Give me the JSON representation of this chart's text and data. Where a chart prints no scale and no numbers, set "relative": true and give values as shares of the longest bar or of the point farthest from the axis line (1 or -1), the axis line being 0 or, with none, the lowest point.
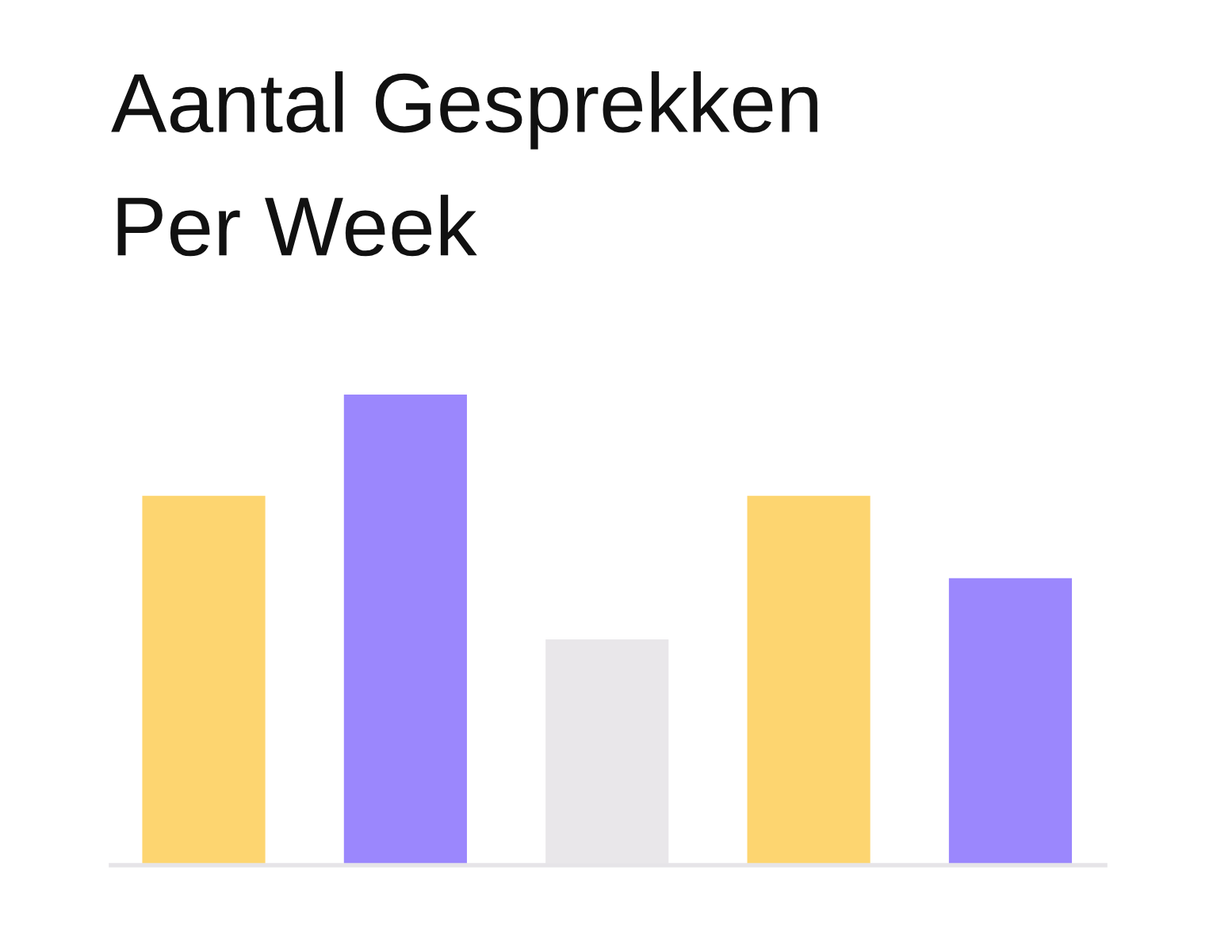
{
  "chart_data": {
    "type": "bar",
    "title": "Aantal Gesprekken\nPer Week",
    "categories": [
      null,
      null,
      null,
      null,
      null
    ],
    "values": [
      0.785,
      1,
      0.48,
      0.785,
      0.61
    ],
    "colors": [
      "#fdd570",
      "#9b87fd",
      "#e9e7ea",
      "#fdd570",
      "#9b87fd"
    ],
    "relative": true,
    "grid": false,
    "legend": false
  }
}
